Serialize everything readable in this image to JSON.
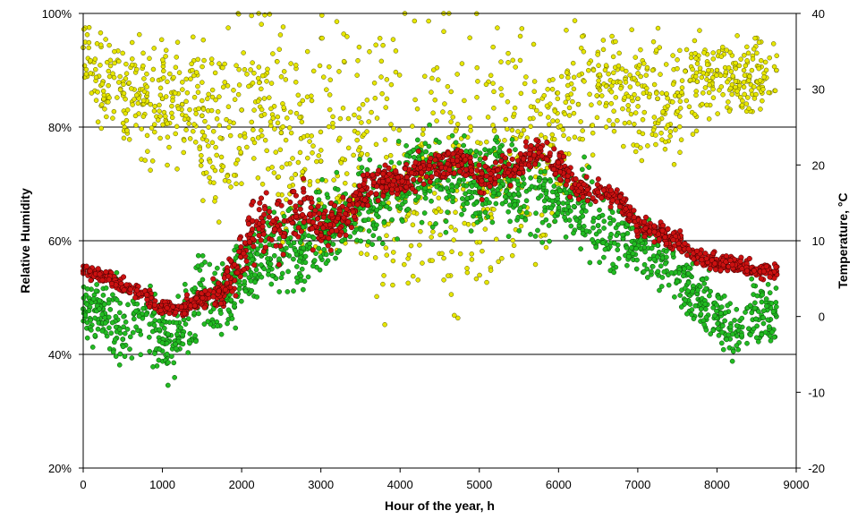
{
  "chart_data": {
    "type": "scatter",
    "title": "",
    "xlabel": "Hour of the year, h",
    "ylabel": "Relative Humidity",
    "y2label": "Temperature, °C",
    "xlim": [
      0,
      9000
    ],
    "ylim": [
      20,
      100
    ],
    "y2lim": [
      -20,
      40
    ],
    "x_ticks": [
      "0",
      "1000",
      "2000",
      "3000",
      "4000",
      "5000",
      "6000",
      "7000",
      "8000",
      "9000"
    ],
    "y_ticks": [
      "20%",
      "40%",
      "60%",
      "80%",
      "100%"
    ],
    "y2_ticks": [
      "-20",
      "-10",
      "0",
      "10",
      "20",
      "30",
      "40"
    ],
    "gridlines": "horizontal at 40%, 60%, 80%",
    "legend": "none",
    "series": [
      {
        "axis": "left",
        "color": "#e6e600",
        "description": "relative humidity (yellow markers)",
        "x": [
          0,
          250,
          500,
          750,
          1000,
          1250,
          1500,
          1750,
          2000,
          2250,
          2500,
          2750,
          3000,
          3250,
          3500,
          3750,
          4000,
          4250,
          4500,
          4750,
          5000,
          5250,
          5500,
          5750,
          6000,
          6250,
          6500,
          6750,
          7000,
          7250,
          7500,
          7750,
          8000,
          8250,
          8500,
          8750
        ],
        "y": [
          94,
          88,
          86,
          84,
          85,
          84,
          82,
          78,
          83,
          82,
          79,
          78,
          74,
          74,
          75,
          72,
          70,
          73,
          73,
          74,
          72,
          73,
          75,
          76,
          80,
          84,
          87,
          88,
          85,
          85,
          86,
          88,
          90,
          88,
          88,
          90
        ],
        "spread": [
          4,
          7,
          8,
          8,
          8,
          8,
          10,
          14,
          12,
          12,
          14,
          14,
          17,
          17,
          16,
          18,
          18,
          16,
          16,
          16,
          18,
          16,
          15,
          15,
          12,
          10,
          7,
          6,
          8,
          8,
          7,
          6,
          5,
          6,
          6,
          5
        ]
      },
      {
        "axis": "right",
        "color": "#22bb22",
        "description": "temperature (green markers)",
        "x": [
          0,
          250,
          500,
          750,
          1000,
          1250,
          1500,
          1750,
          2000,
          2250,
          2500,
          2750,
          3000,
          3250,
          3500,
          3750,
          4000,
          4250,
          4500,
          4750,
          5000,
          5250,
          5500,
          5750,
          6000,
          6250,
          6500,
          6750,
          7000,
          7250,
          7500,
          7750,
          8000,
          8250,
          8500,
          8750
        ],
        "y": [
          1,
          1,
          -3,
          0,
          -3,
          -2,
          3,
          2,
          6,
          8,
          9,
          9,
          11,
          13,
          15,
          15,
          17,
          19,
          18,
          18,
          17,
          19,
          16,
          17,
          15,
          15,
          12,
          11,
          10,
          8,
          6,
          3,
          0,
          -2,
          1,
          0
        ],
        "spread": [
          3,
          3,
          5,
          3,
          4,
          4,
          4,
          4,
          4,
          4,
          4,
          4,
          4,
          4,
          4,
          4,
          4,
          4,
          4,
          4,
          4,
          4,
          4,
          4,
          4,
          4,
          4,
          4,
          3,
          3,
          3,
          3,
          3,
          3,
          3,
          3
        ]
      },
      {
        "axis": "right",
        "color": "#cc1111",
        "description": "temperature (dark red markers)",
        "x": [
          0,
          250,
          500,
          750,
          1000,
          1250,
          1500,
          1750,
          2000,
          2250,
          2500,
          2750,
          3000,
          3250,
          3500,
          3750,
          4000,
          4250,
          4500,
          4750,
          5000,
          5250,
          5500,
          5750,
          6000,
          6250,
          6500,
          6750,
          7000,
          7250,
          7500,
          7750,
          8000,
          8250,
          8500,
          8750
        ],
        "y": [
          6,
          5.5,
          4,
          3,
          1,
          1,
          2.5,
          3,
          8,
          13,
          11,
          15,
          11,
          13,
          16,
          18,
          18,
          19,
          20,
          21,
          18,
          19.5,
          20,
          22,
          20,
          17,
          16,
          16,
          12,
          11,
          10,
          8,
          7,
          7,
          6,
          6
        ],
        "spread": [
          0.7,
          0.7,
          0.7,
          0.7,
          0.7,
          0.7,
          1,
          2,
          3,
          3,
          3,
          3,
          2,
          2,
          2,
          1.5,
          1.5,
          1.5,
          1.5,
          1.5,
          1.5,
          1.5,
          1.5,
          1.5,
          1.5,
          1.2,
          1.2,
          1.2,
          1,
          1,
          1,
          0.8,
          0.8,
          0.8,
          0.8,
          0.8
        ]
      }
    ]
  }
}
